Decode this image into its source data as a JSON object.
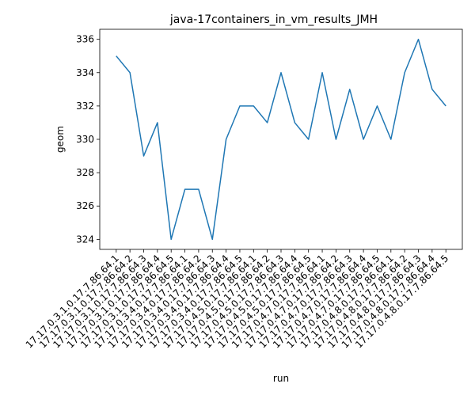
{
  "chart_data": {
    "type": "line",
    "title": "java-17containers_in_vm_results_JMH",
    "xlabel": "run",
    "ylabel": "geom",
    "ylim": [
      323.4,
      336.6
    ],
    "yticks": [
      324,
      326,
      328,
      330,
      332,
      334,
      336
    ],
    "grid": false,
    "line_color": "#1f77b4",
    "categories": [
      "17.17.0.3.1.0.17.7.86.64.1",
      "17.17.0.3.1.0.17.7.86.64.2",
      "17.17.0.3.1.0.17.7.86.64.3",
      "17.17.0.3.1.0.17.7.86.64.4",
      "17.17.0.3.1.0.17.7.86.64.5",
      "17.17.0.3.4.0.17.7.86.64.1",
      "17.17.0.3.4.0.17.7.86.64.2",
      "17.17.0.3.4.0.17.7.86.64.3",
      "17.17.0.3.4.0.17.7.86.64.4",
      "17.17.0.3.4.0.17.7.86.64.5",
      "17.17.0.4.5.0.17.7.86.64.1",
      "17.17.0.4.5.0.17.7.86.64.2",
      "17.17.0.4.5.0.17.7.86.64.3",
      "17.17.0.4.5.0.17.7.86.64.4",
      "17.17.0.4.5.0.17.7.86.64.5",
      "17.17.0.4.7.0.17.7.86.64.1",
      "17.17.0.4.7.0.17.7.86.64.2",
      "17.17.0.4.7.0.17.7.86.64.3",
      "17.17.0.4.7.0.17.7.86.64.4",
      "17.17.0.4.7.0.17.7.86.64.5",
      "17.17.0.4.8.0.17.7.86.64.1",
      "17.17.0.4.8.0.17.7.86.64.2",
      "17.17.0.4.8.0.17.7.86.64.3",
      "17.17.0.4.8.0.17.7.86.64.4",
      "17.17.0.4.8.0.17.7.86.64.5"
    ],
    "values": [
      335,
      334,
      329,
      331,
      324,
      327,
      327,
      324,
      330,
      332,
      332,
      331,
      334,
      331,
      330,
      334,
      330,
      333,
      330,
      332,
      330,
      334,
      336,
      333,
      332
    ]
  }
}
